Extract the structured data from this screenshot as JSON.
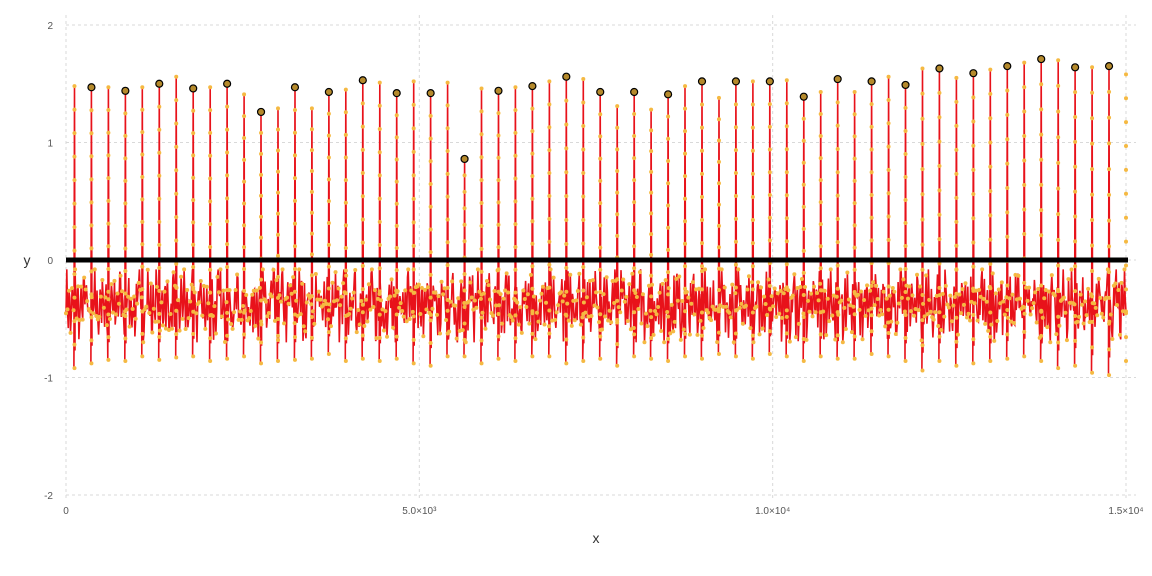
{
  "chart_data": {
    "type": "line",
    "title": "",
    "xlabel": "x",
    "ylabel": "y",
    "xlim": [
      0,
      15000
    ],
    "ylim": [
      -2,
      2
    ],
    "grid": true,
    "legend": "none",
    "xticks": [
      0,
      5000,
      10000,
      15000
    ],
    "xtick_labels": [
      "0",
      "5.0×10³",
      "1.0×10⁴",
      "1.5×10⁴"
    ],
    "yticks": [
      -2,
      -1,
      0,
      1,
      2
    ],
    "ytick_labels": [
      "-2",
      "-1",
      "0",
      "1",
      "2"
    ],
    "colors": {
      "signal_line": "#e8121a",
      "sample_point": "#f5b942",
      "peak_marker_fill": "#b58a2c",
      "zero_line": "#000000"
    },
    "baseline": {
      "y": 0
    },
    "spikes": {
      "x": [
        120,
        360,
        600,
        840,
        1080,
        1320,
        1560,
        1800,
        2040,
        2280,
        2520,
        2760,
        3000,
        3240,
        3480,
        3720,
        3960,
        4200,
        4440,
        4680,
        4920,
        5160,
        5400,
        5640,
        5880,
        6120,
        6360,
        6600,
        6840,
        7080,
        7320,
        7560,
        7800,
        8040,
        8280,
        8520,
        8760,
        9000,
        9240,
        9480,
        9720,
        9960,
        10200,
        10440,
        10680,
        10920,
        11160,
        11400,
        11640,
        11880,
        12120,
        12360,
        12600,
        12840,
        13080,
        13320,
        13560,
        13800,
        14040,
        14280,
        14520,
        14760,
        15000
      ],
      "peak": [
        1.48,
        1.47,
        1.47,
        1.44,
        1.47,
        1.5,
        1.56,
        1.46,
        1.47,
        1.5,
        1.41,
        1.26,
        1.29,
        1.47,
        1.29,
        1.43,
        1.45,
        1.53,
        1.51,
        1.42,
        1.52,
        1.42,
        1.51,
        0.86,
        1.46,
        1.44,
        1.47,
        1.48,
        1.52,
        1.56,
        1.54,
        1.43,
        1.31,
        1.43,
        1.28,
        1.41,
        1.48,
        1.52,
        1.38,
        1.52,
        1.52,
        1.52,
        1.53,
        1.39,
        1.43,
        1.54,
        1.43,
        1.52,
        1.56,
        1.49,
        1.63,
        1.63,
        1.55,
        1.59,
        1.62,
        1.65,
        1.68,
        1.71,
        1.7,
        1.64,
        1.64,
        1.65,
        1.58
      ],
      "trough": [
        -0.92,
        -0.88,
        -0.85,
        -0.86,
        -0.82,
        -0.85,
        -0.83,
        -0.82,
        -0.86,
        -0.84,
        -0.82,
        -0.88,
        -0.86,
        -0.85,
        -0.84,
        -0.8,
        -0.86,
        -0.84,
        -0.86,
        -0.84,
        -0.88,
        -0.9,
        -0.82,
        -0.82,
        -0.88,
        -0.84,
        -0.86,
        -0.82,
        -0.82,
        -0.88,
        -0.86,
        -0.84,
        -0.9,
        -0.82,
        -0.84,
        -0.86,
        -0.82,
        -0.84,
        -0.8,
        -0.82,
        -0.84,
        -0.8,
        -0.82,
        -0.86,
        -0.82,
        -0.84,
        -0.84,
        -0.8,
        -0.82,
        -0.86,
        -0.94,
        -0.86,
        -0.9,
        -0.88,
        -0.86,
        -0.84,
        -0.82,
        -0.86,
        -0.92,
        -0.9,
        -0.96,
        -0.98,
        -0.86
      ]
    },
    "noise_band": {
      "center": -0.38,
      "lower": -0.7,
      "upper": -0.08
    }
  }
}
